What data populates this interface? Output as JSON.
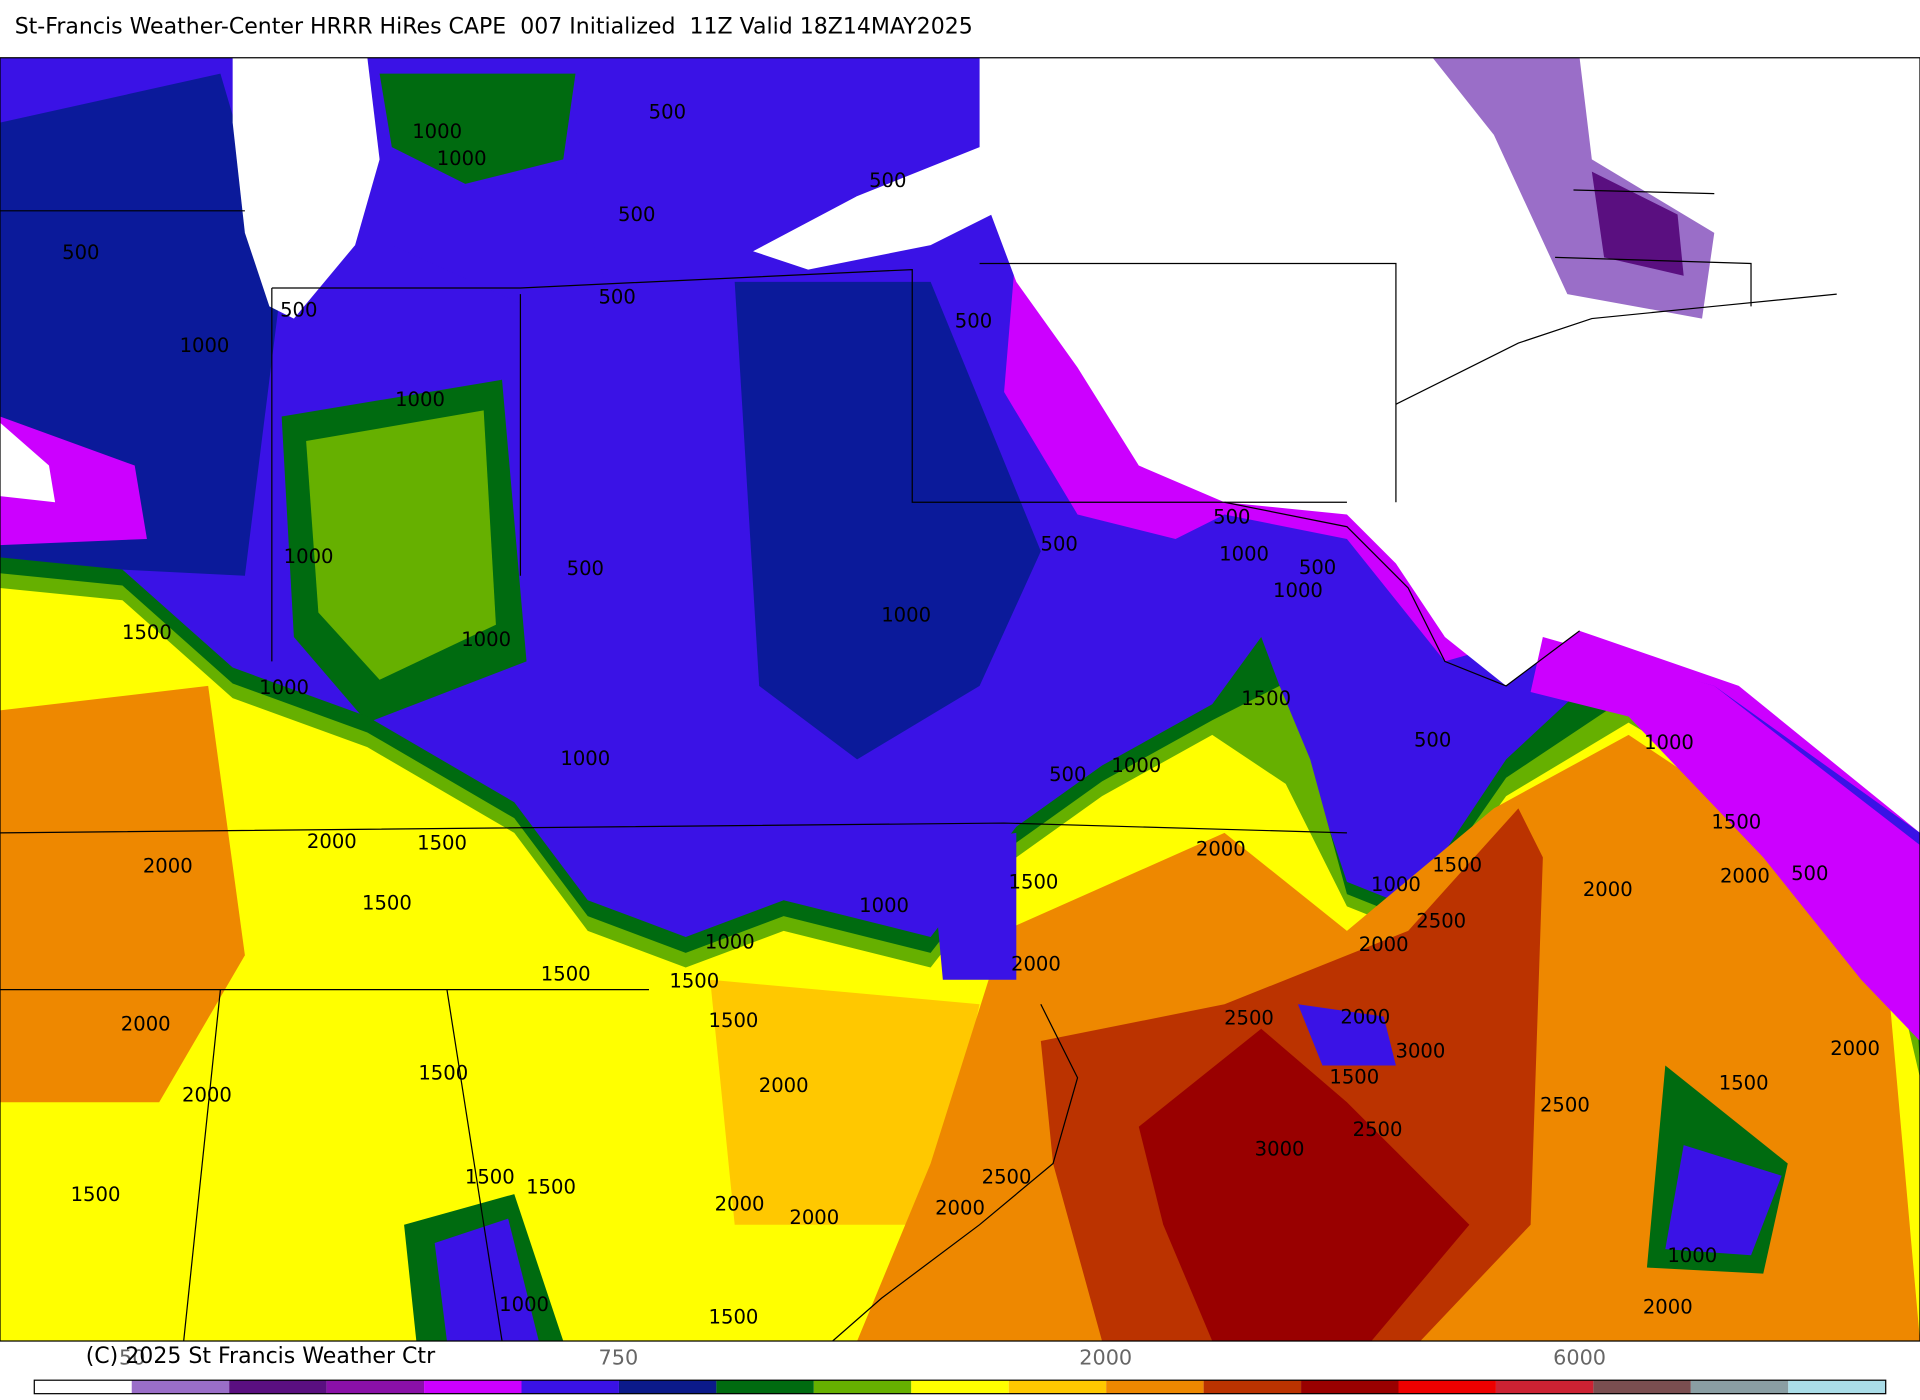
{
  "header": {
    "title": "St-Francis Weather-Center HRRR HiRes CAPE  007 Initialized  11Z Valid 18Z14MAY2025"
  },
  "map": {
    "contour_labels": [
      1000,
      1000,
      500,
      500,
      500,
      500,
      500,
      500,
      500,
      1000,
      1000,
      1000,
      500,
      500,
      500,
      1000,
      1000,
      500,
      1000,
      1000,
      1500,
      1000,
      1500,
      1000,
      500,
      1000,
      500,
      1000,
      2000,
      1500,
      2000,
      2000,
      1500,
      2000,
      2000,
      500,
      1500,
      1000,
      1500,
      1500,
      1000,
      2500,
      2000,
      1000,
      2000,
      1500,
      1500,
      2500,
      2000,
      1500,
      2000,
      3000,
      1500,
      1500,
      2000,
      2000,
      2500,
      1500,
      2500,
      2000,
      3000,
      2500,
      1500,
      1500,
      1500,
      2000,
      2000,
      2000,
      1000,
      1500,
      1000,
      2000
    ]
  },
  "colorbar": {
    "colors": [
      "#ffffff",
      "#9a6ec8",
      "#5a0f80",
      "#8a10a8",
      "#cc00ff",
      "#3a12e6",
      "#0b1a8a",
      "#006b10",
      "#66b000",
      "#ffff00",
      "#ffc800",
      "#ee8800",
      "#bb3300",
      "#990000",
      "#ee0000",
      "#cc2233",
      "#7a4e50",
      "#8a9ea3",
      "#aadde8"
    ],
    "labels": [
      "50",
      "750",
      "2000",
      "6000"
    ]
  },
  "footer": {
    "copyright": "(C) 2025 St Francis Weather Ctr"
  }
}
